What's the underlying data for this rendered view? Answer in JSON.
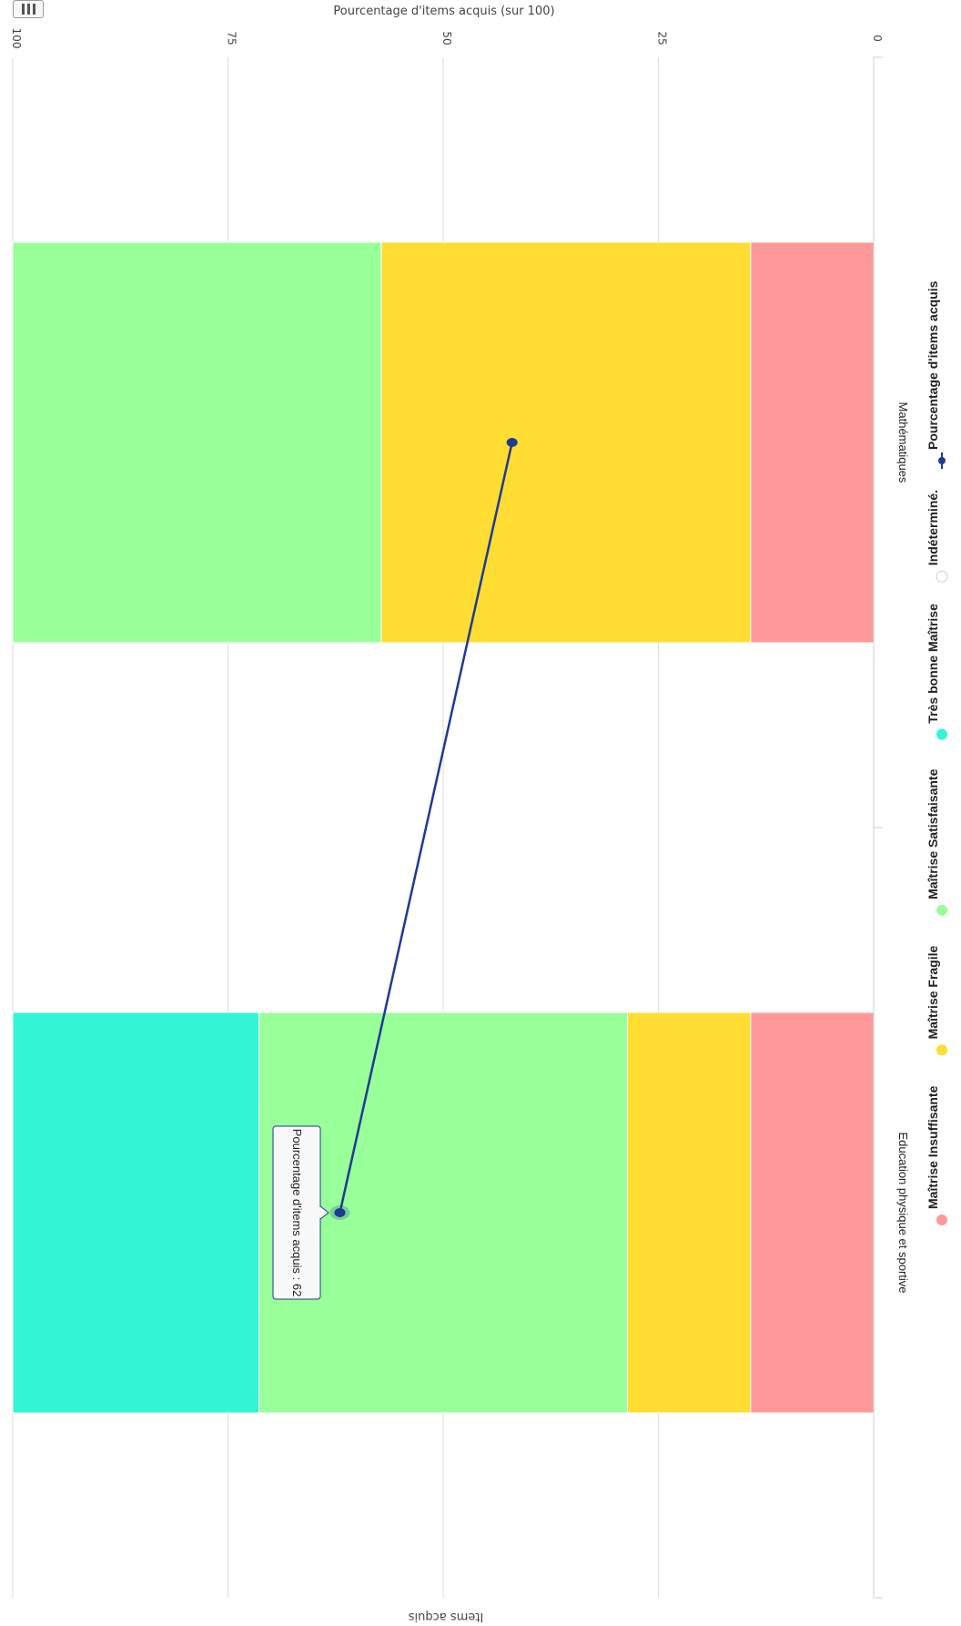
{
  "menu": {
    "icon": "hamburger-icon"
  },
  "chart_data": {
    "type": "bar",
    "orientation": "rotated-90-clockwise",
    "stacked": true,
    "title": "",
    "value_axis_title": "Pourcentage d'items acquis (sur 100)",
    "category_axis_title": "Items acquis",
    "ylim": [
      0,
      100
    ],
    "yticks": [
      0,
      25,
      50,
      75,
      100
    ],
    "categories": [
      "Mathématiques",
      "Education physique et sportive"
    ],
    "series": [
      {
        "name": "Maîtrise Insuffisante",
        "color": "#FF9999",
        "values": [
          14.3,
          14.3
        ]
      },
      {
        "name": "Maîtrise Fragile",
        "color": "#FFDD33",
        "values": [
          42.9,
          14.3
        ]
      },
      {
        "name": "Maîtrise Satisfaisante",
        "color": "#99FF99",
        "values": [
          42.8,
          42.8
        ]
      },
      {
        "name": "Très bonne Maîtrise",
        "color": "#33F5D5",
        "values": [
          0,
          28.6
        ]
      },
      {
        "name": "Indéterminé.",
        "color": "#FFFFFF",
        "values": [
          0,
          0
        ]
      }
    ],
    "line_series": {
      "name": "Pourcentage d'items acquis",
      "color": "#1F3A93",
      "values": [
        42,
        62
      ]
    },
    "tooltip": {
      "category_index": 1,
      "text": "Pourcentage d'items acquis : 62"
    },
    "grid": true,
    "legend_placement": "bottom"
  }
}
